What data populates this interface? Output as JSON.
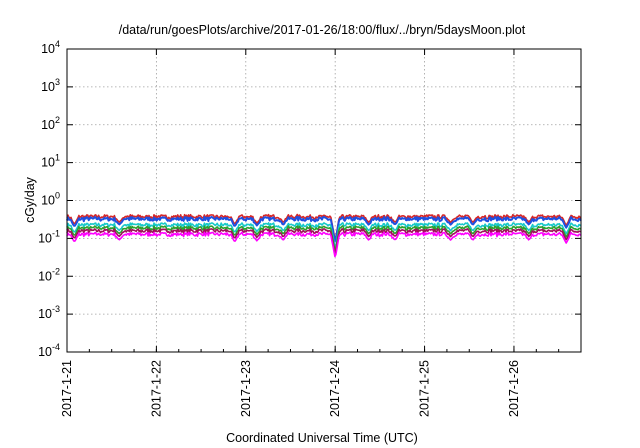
{
  "chart_data": {
    "type": "line",
    "title": "/data/run/goesPlots/archive/2017-01-26/18:00/flux/../bryn/5daysMoon.plot",
    "xlabel": "Coordinated Universal Time (UTC)",
    "ylabel": "cGy/day",
    "y_scale": "log",
    "ylim": [
      0.0001,
      10000
    ],
    "y_ticks": [
      {
        "base": "10",
        "exp": "-4",
        "value": 0.0001
      },
      {
        "base": "10",
        "exp": "-3",
        "value": 0.001
      },
      {
        "base": "10",
        "exp": "-2",
        "value": 0.01
      },
      {
        "base": "10",
        "exp": "-1",
        "value": 0.1
      },
      {
        "base": "10",
        "exp": "0",
        "value": 1
      },
      {
        "base": "10",
        "exp": "1",
        "value": 10
      },
      {
        "base": "10",
        "exp": "2",
        "value": 100
      },
      {
        "base": "10",
        "exp": "3",
        "value": 1000
      },
      {
        "base": "10",
        "exp": "4",
        "value": 10000
      }
    ],
    "x_ticks": [
      "2017-1-21",
      "2017-1-22",
      "2017-1-23",
      "2017-1-24",
      "2017-1-25",
      "2017-1-26"
    ],
    "xlim": [
      "2017-01-21T00:00",
      "2017-01-26T18:00"
    ],
    "grid": true,
    "series": [
      {
        "color": "#d62728",
        "level": 0.38
      },
      {
        "color": "#1f4fe0",
        "level": 0.33
      },
      {
        "color": "#17c9c9",
        "level": 0.23
      },
      {
        "color": "#2ca02c",
        "level": 0.19
      },
      {
        "color": "#a0105a",
        "level": 0.16
      },
      {
        "color": "#ff00ff",
        "level": 0.13
      }
    ],
    "dips": [
      {
        "x": "2017-01-21T02:00",
        "min": 0.08
      },
      {
        "x": "2017-01-21T14:00",
        "min": 0.09
      },
      {
        "x": "2017-01-22T21:00",
        "min": 0.08
      },
      {
        "x": "2017-01-23T03:00",
        "min": 0.085
      },
      {
        "x": "2017-01-23T10:00",
        "min": 0.09
      },
      {
        "x": "2017-01-24T00:00",
        "min": 0.03
      },
      {
        "x": "2017-01-24T09:00",
        "min": 0.09
      },
      {
        "x": "2017-01-24T16:00",
        "min": 0.09
      },
      {
        "x": "2017-01-25T07:00",
        "min": 0.09
      },
      {
        "x": "2017-01-25T13:00",
        "min": 0.09
      },
      {
        "x": "2017-01-26T04:00",
        "min": 0.09
      },
      {
        "x": "2017-01-26T14:00",
        "min": 0.075
      }
    ]
  }
}
